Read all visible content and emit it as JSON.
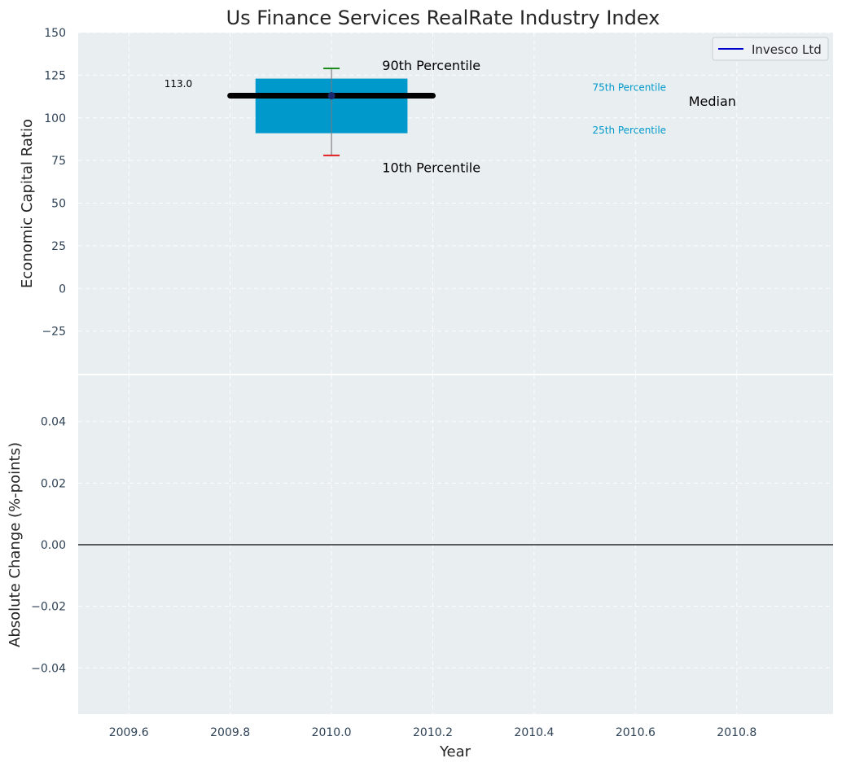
{
  "chart_data": [
    {
      "type": "box",
      "title": "Us Finance Services RealRate Industry Index",
      "ylabel": "Economic Capital Ratio",
      "xlim": [
        2009.5,
        2010.99
      ],
      "ylim": [
        -50,
        150
      ],
      "yticks": [
        -25,
        0,
        25,
        50,
        75,
        100,
        125,
        150
      ],
      "ytick_labels": [
        "−25",
        "0",
        "25",
        "50",
        "75",
        "100",
        "125",
        "150"
      ],
      "grid": true,
      "legend": {
        "position": "top-right",
        "entries": [
          {
            "label": "Invesco Ltd",
            "color": "#0000cc"
          }
        ]
      },
      "box": {
        "x": 2010.0,
        "x_left": 2009.85,
        "x_right": 2010.15,
        "p10": 78,
        "p25": 91,
        "p75": 123,
        "p90": 129,
        "median": 113,
        "color": "#0099cc"
      },
      "median_line": {
        "x_start": 2009.8,
        "x_end": 2010.2,
        "y": 113,
        "color": "#000000"
      },
      "value_label": {
        "text": "113.0",
        "x": 2009.67,
        "y": 120
      },
      "annotations": [
        {
          "text": "90th Percentile",
          "x": 2010.1,
          "y": 131,
          "color": "#000000",
          "size": "large"
        },
        {
          "text": "10th Percentile",
          "x": 2010.1,
          "y": 71,
          "color": "#000000",
          "size": "large"
        },
        {
          "text": "75th Percentile",
          "x": 2010.515,
          "y": 118,
          "color": "#0099cc",
          "size": "small"
        },
        {
          "text": "25th Percentile",
          "x": 2010.515,
          "y": 93,
          "color": "#0099cc",
          "size": "small"
        },
        {
          "text": "Median",
          "x": 2010.705,
          "y": 110,
          "color": "#000000",
          "size": "large"
        }
      ]
    },
    {
      "type": "line",
      "ylabel": "Absolute Change (%-points)",
      "xlabel": "Year",
      "xlim": [
        2009.5,
        2010.99
      ],
      "ylim": [
        -0.055,
        0.055
      ],
      "xticks": [
        2009.6,
        2009.8,
        2010.0,
        2010.2,
        2010.4,
        2010.6,
        2010.8
      ],
      "xtick_labels": [
        "2009.6",
        "2009.8",
        "2010.0",
        "2010.2",
        "2010.4",
        "2010.6",
        "2010.8"
      ],
      "yticks": [
        -0.04,
        -0.02,
        0.0,
        0.02,
        0.04
      ],
      "ytick_labels": [
        "−0.04",
        "−0.02",
        "0.00",
        "0.02",
        "0.04"
      ],
      "grid": true,
      "reference_line": {
        "y": 0.0,
        "color": "#000000"
      }
    }
  ]
}
